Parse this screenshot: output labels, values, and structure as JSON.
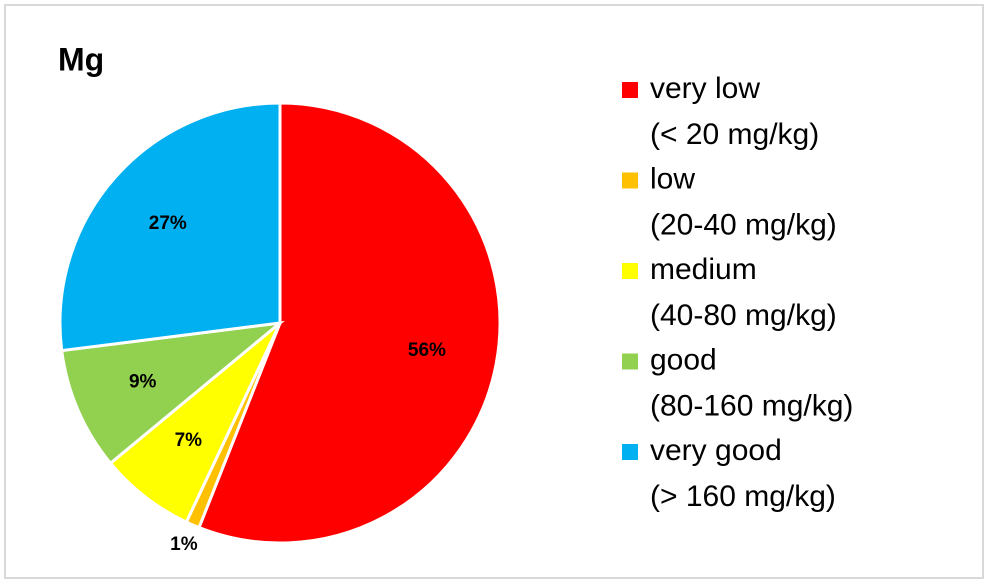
{
  "chart_data": {
    "type": "pie",
    "title": "Mg",
    "categories": [
      "very low",
      "low",
      "medium",
      "good",
      "very good"
    ],
    "legend_sublabels": [
      "(< 20 mg/kg)",
      "(20-40 mg/kg)",
      "(40-80 mg/kg)",
      "(80-160 mg/kg)",
      "(> 160 mg/kg)"
    ],
    "values": [
      56,
      1,
      7,
      9,
      27
    ],
    "value_labels": [
      "56%",
      "1%",
      "7%",
      "9%",
      "27%"
    ],
    "colors": [
      "#ff0000",
      "#ffc000",
      "#ffff00",
      "#92d050",
      "#00b0f0"
    ],
    "legend": "right"
  }
}
